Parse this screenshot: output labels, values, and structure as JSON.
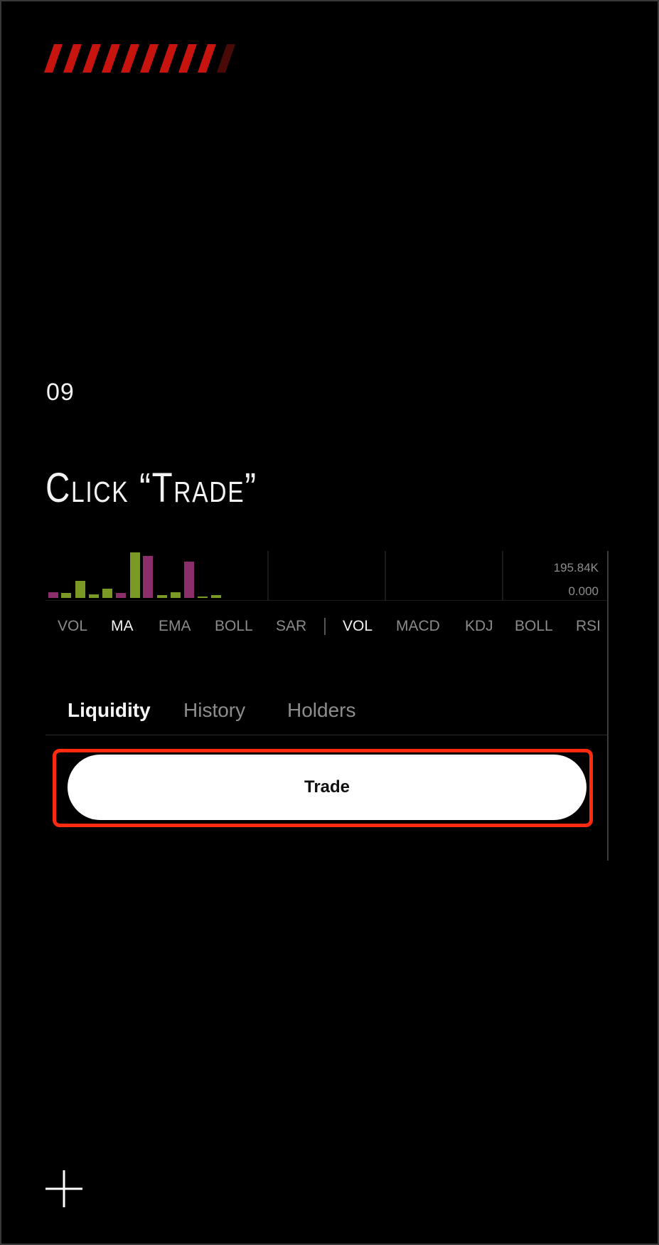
{
  "step": {
    "number": "09",
    "title": "Click “Trade”"
  },
  "colors": {
    "accent_red": "#c8140f",
    "highlight_red": "#ff2a10",
    "bar_green": "#7a9a25",
    "bar_magenta": "#8a2f6a"
  },
  "app": {
    "volume_axis": {
      "top": "195.84K",
      "bottom": "0.000"
    },
    "indicators_main": [
      "VOL",
      "MA",
      "EMA",
      "BOLL",
      "SAR"
    ],
    "indicators_sub": [
      "VOL",
      "MACD",
      "KDJ",
      "BOLL",
      "RSI"
    ],
    "active_main": "MA",
    "active_sub": "VOL",
    "tabs": [
      {
        "label": "Liquidity",
        "active": true
      },
      {
        "label": "History",
        "active": false
      },
      {
        "label": "Holders",
        "active": false
      }
    ],
    "trade_button_label": "Trade"
  },
  "icons": {
    "decoration": "red-slash-stripes",
    "bottom": "plus-icon"
  }
}
